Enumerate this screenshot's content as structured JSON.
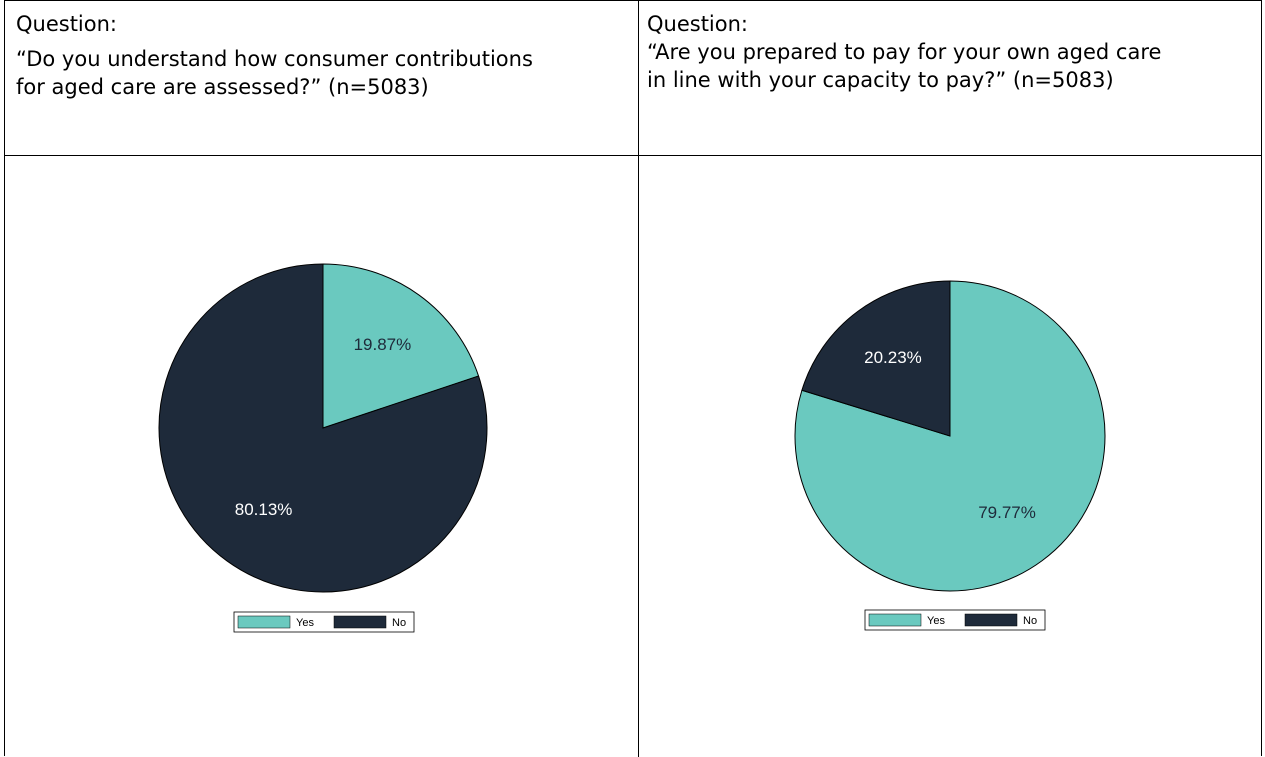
{
  "table": {
    "left": {
      "label": "Question:",
      "question": "“Do you understand how consumer contributions\nfor aged care are assessed?” (n=5083)"
    },
    "right": {
      "label": "Question:",
      "question": "“Are you prepared to pay for your own aged care\nin line with your capacity to pay?” (n=5083)"
    }
  },
  "colors": {
    "yes": "#6ac9bf",
    "no": "#1e2a3a",
    "label_on_yes": "#1e2a3a",
    "label_on_no": "#ffffff"
  },
  "chart_data": [
    {
      "type": "pie",
      "slices": [
        {
          "label": "Yes",
          "value": 19.87,
          "value_label": "19.87%"
        },
        {
          "label": "No",
          "value": 80.13,
          "value_label": "80.13%"
        }
      ],
      "legend": [
        "Yes",
        "No"
      ],
      "legend_position": "bottom"
    },
    {
      "type": "pie",
      "slices": [
        {
          "label": "Yes",
          "value": 79.77,
          "value_label": "79.77%"
        },
        {
          "label": "No",
          "value": 20.23,
          "value_label": "20.23%"
        }
      ],
      "legend": [
        "Yes",
        "No"
      ],
      "legend_position": "bottom"
    }
  ]
}
